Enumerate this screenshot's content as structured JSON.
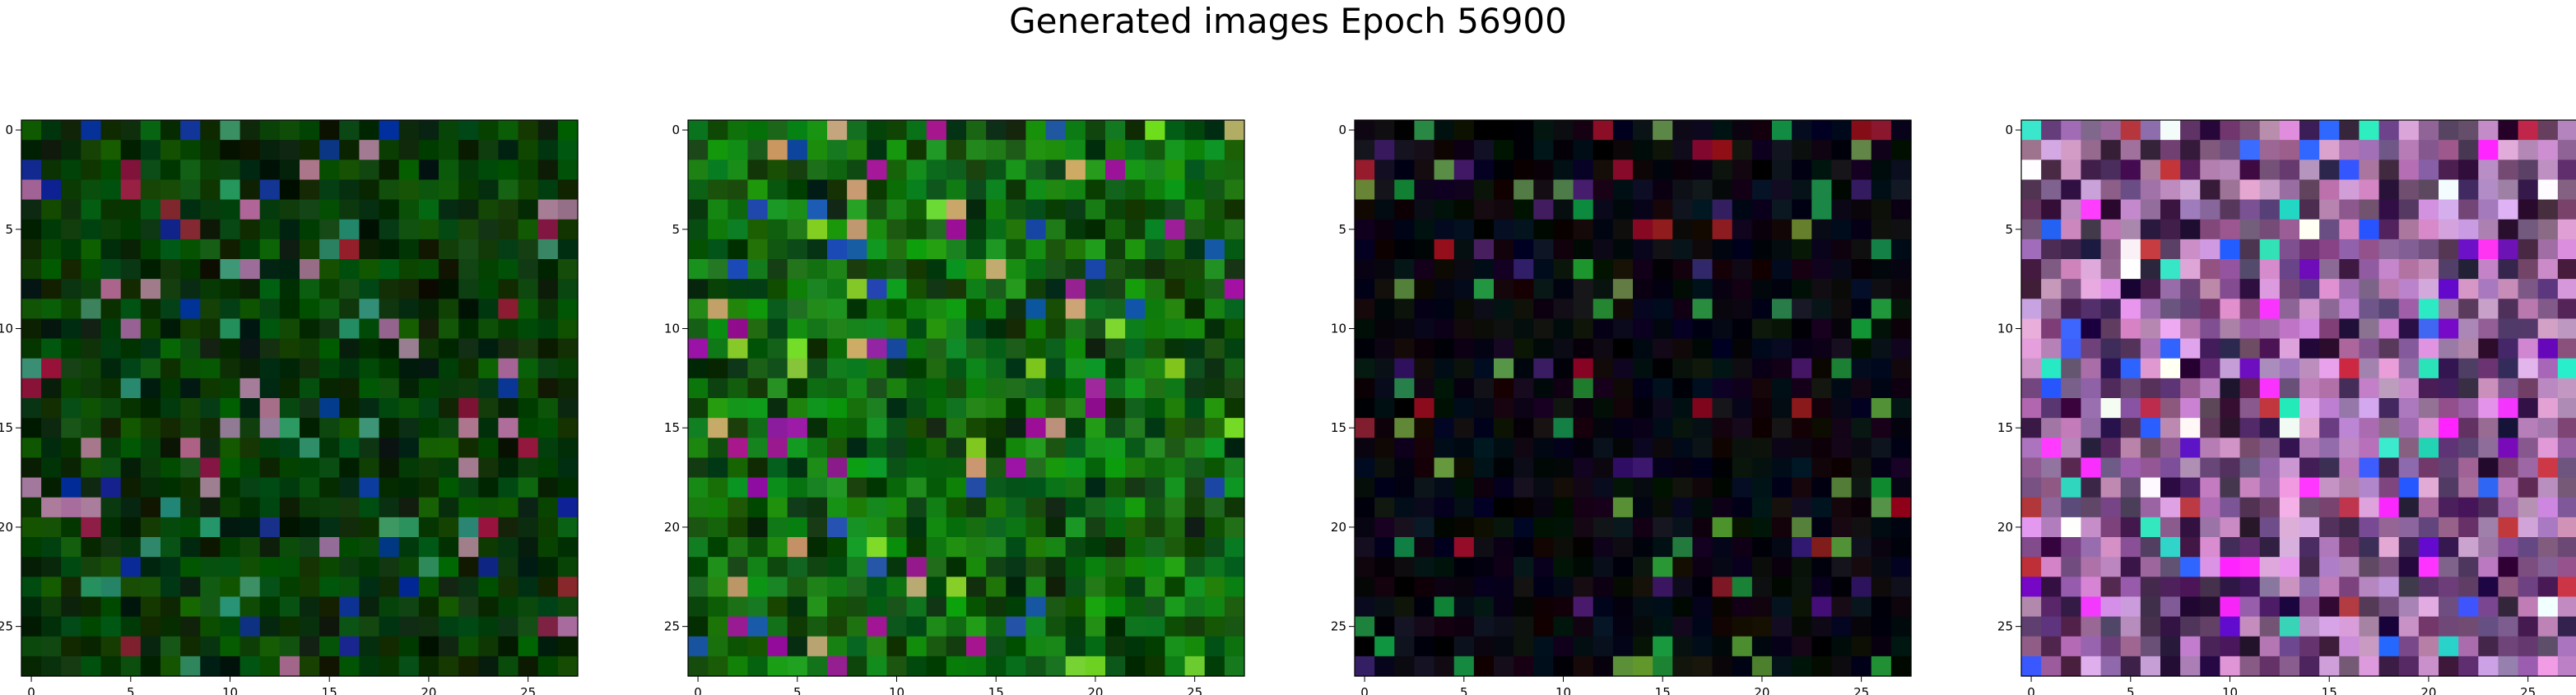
{
  "figure": {
    "title": "Generated images Epoch 56900"
  },
  "chart_data": [
    {
      "type": "heatmap",
      "subtitle": "",
      "xlabel": "",
      "ylabel": "",
      "xlim": [
        -0.5,
        27.5
      ],
      "ylim": [
        27.5,
        -0.5
      ],
      "x_ticks": [
        0,
        5,
        10,
        15,
        20,
        25
      ],
      "y_ticks": [
        0,
        5,
        10,
        15,
        20,
        25
      ],
      "grid_size": [
        28,
        28
      ],
      "palette": {
        "dominant": "#0a5a0a",
        "dark": "#051805",
        "accent": [
          "#0b2f8f",
          "#8a1b3a",
          "#2f8f6a",
          "#a07090"
        ]
      },
      "description_level": {
        "mean_brightness": 0.3
      }
    },
    {
      "type": "heatmap",
      "subtitle": "",
      "xlabel": "",
      "ylabel": "",
      "xlim": [
        -0.5,
        27.5
      ],
      "ylim": [
        27.5,
        -0.5
      ],
      "x_ticks": [
        0,
        5,
        10,
        15,
        20,
        25
      ],
      "y_ticks": [
        0,
        5,
        10,
        15,
        20,
        25
      ],
      "grid_size": [
        28,
        28
      ],
      "palette": {
        "dominant": "#1a9a1a",
        "dark": "#082808",
        "accent": [
          "#1a4faa",
          "#9a1a9a",
          "#c0a070",
          "#7ad02a"
        ]
      },
      "description_level": {
        "mean_brightness": 0.4
      }
    },
    {
      "type": "heatmap",
      "subtitle": "",
      "xlabel": "",
      "ylabel": "",
      "xlim": [
        -0.5,
        27.5
      ],
      "ylim": [
        27.5,
        -0.5
      ],
      "x_ticks": [
        0,
        5,
        10,
        15,
        20,
        25
      ],
      "y_ticks": [
        0,
        5,
        10,
        15,
        20,
        25
      ],
      "grid_size": [
        28,
        28
      ],
      "palette": {
        "dominant": "#0b0b1a",
        "dark": "#050508",
        "accent": [
          "#1a8a3a",
          "#8a1020",
          "#3a1a6a",
          "#5a8a3a"
        ]
      },
      "description_level": {
        "mean_brightness": 0.2
      }
    },
    {
      "type": "heatmap",
      "subtitle": "",
      "xlabel": "",
      "ylabel": "",
      "xlim": [
        -0.5,
        27.5
      ],
      "ylim": [
        27.5,
        -0.5
      ],
      "x_ticks": [
        0,
        5,
        10,
        15,
        20,
        25
      ],
      "y_ticks": [
        0,
        5,
        10,
        15,
        20,
        25
      ],
      "grid_size": [
        28,
        28
      ],
      "palette": {
        "dominant": "#e8a8e8",
        "dark": "#200830",
        "accent": [
          "#ff30ff",
          "#6a10c0",
          "#ffffff",
          "#3060ff",
          "#30e0c0",
          "#c03040"
        ]
      },
      "description_level": {
        "mean_brightness": 0.65
      }
    }
  ]
}
